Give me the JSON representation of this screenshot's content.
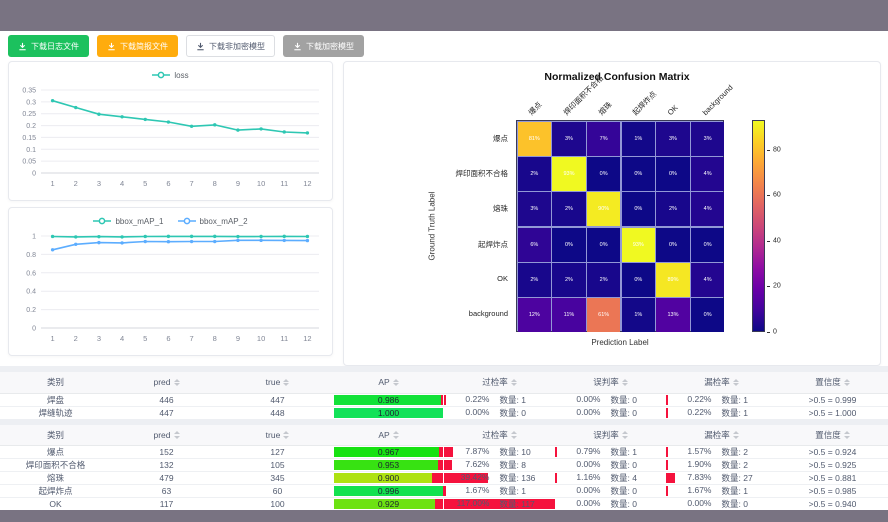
{
  "colors": {
    "chrome_bar": "#797382",
    "green_button": "#1cc15e",
    "orange_button": "#ffac0d",
    "gray_button": "#a2a2a2",
    "loss_line": "#2ec7b3",
    "map1_line": "#2ec7b3",
    "map2_line": "#5cadff",
    "bar_green_high": "#0ddf5b",
    "bar_green_low": "#b8df1c",
    "bar_red": "#f5123d",
    "table_header_bg": "#f8f8fa"
  },
  "toolbar": {
    "buttons": [
      {
        "label": "下载日志文件",
        "variant": "green"
      },
      {
        "label": "下载简报文件",
        "variant": "orange"
      },
      {
        "label": "下载非加密模型",
        "variant": "white"
      },
      {
        "label": "下载加密模型",
        "variant": "gray"
      }
    ]
  },
  "chart_data": [
    {
      "type": "line",
      "title": "loss",
      "legend": [
        "loss"
      ],
      "legend_position": "top",
      "grid": true,
      "x": [
        1,
        2,
        3,
        4,
        5,
        6,
        7,
        8,
        9,
        10,
        11,
        12
      ],
      "series": [
        {
          "name": "loss",
          "color": "#2ec7b3",
          "values": [
            0.305,
            0.276,
            0.248,
            0.237,
            0.226,
            0.215,
            0.197,
            0.203,
            0.181,
            0.186,
            0.173,
            0.169
          ]
        }
      ],
      "ylim": [
        0,
        0.35
      ],
      "yticks": [
        0,
        0.05,
        0.1,
        0.15,
        0.2,
        0.25,
        0.3,
        0.35
      ]
    },
    {
      "type": "line",
      "title": "bbox_mAP",
      "legend": [
        "bbox_mAP_1",
        "bbox_mAP_2"
      ],
      "legend_position": "top",
      "grid": true,
      "x": [
        1,
        2,
        3,
        4,
        5,
        6,
        7,
        8,
        9,
        10,
        11,
        12
      ],
      "series": [
        {
          "name": "bbox_mAP_1",
          "color": "#2ec7b3",
          "values": [
            0.995,
            0.99,
            0.993,
            0.99,
            0.995,
            0.996,
            0.996,
            0.996,
            0.994,
            0.995,
            0.996,
            0.995
          ]
        },
        {
          "name": "bbox_mAP_2",
          "color": "#5cadff",
          "values": [
            0.85,
            0.91,
            0.928,
            0.925,
            0.94,
            0.938,
            0.94,
            0.94,
            0.953,
            0.953,
            0.952,
            0.95
          ]
        }
      ],
      "ylim": [
        0,
        1
      ],
      "yticks": [
        0,
        0.2,
        0.4,
        0.6,
        0.8,
        1
      ]
    },
    {
      "type": "heatmap",
      "title": "Normalized Confusion Matrix",
      "xlabel": "Prediction Label",
      "ylabel": "Ground Truth Label",
      "colormap": "plasma",
      "vmax": 93,
      "colorbar_ticks": [
        0,
        20,
        40,
        60,
        80
      ],
      "labels": [
        "爆点",
        "焊印面积不合格",
        "熔珠",
        "起焊炸点",
        "OK",
        "background"
      ],
      "matrix_pct": [
        [
          81,
          3,
          7,
          1,
          3,
          3
        ],
        [
          2,
          93,
          0,
          0,
          0,
          4
        ],
        [
          3,
          2,
          90,
          0,
          2,
          4
        ],
        [
          6,
          0,
          0,
          93,
          0,
          0
        ],
        [
          2,
          2,
          2,
          0,
          89,
          4
        ],
        [
          12,
          11,
          61,
          1,
          13,
          0
        ]
      ]
    }
  ],
  "tables": [
    {
      "headers": [
        "类别",
        "pred",
        "true",
        "AP",
        "过检率",
        "误判率",
        "漏检率",
        "置信度"
      ],
      "rows": [
        {
          "category": "焊盘",
          "pred": "446",
          "true": "447",
          "ap": 0.986,
          "ap_text": "0.986",
          "over_pct": "0.22%",
          "over_count": "数量: 1",
          "over": 0.22,
          "mis_pct": "0.00%",
          "mis_count": "数量: 0",
          "mis": 0,
          "miss_pct": "0.22%",
          "miss_count": "数量: 1",
          "miss": 0.22,
          "conf": ">0.5 = 0.999"
        },
        {
          "category": "焊缝轨迹",
          "pred": "447",
          "true": "448",
          "ap": 1.0,
          "ap_text": "1.000",
          "over_pct": "0.00%",
          "over_count": "数量: 0",
          "over": 0,
          "mis_pct": "0.00%",
          "mis_count": "数量: 0",
          "mis": 0,
          "miss_pct": "0.22%",
          "miss_count": "数量: 1",
          "miss": 0.22,
          "conf": ">0.5 = 1.000"
        }
      ]
    },
    {
      "headers": [
        "类别",
        "pred",
        "true",
        "AP",
        "过检率",
        "误判率",
        "漏检率",
        "置信度"
      ],
      "rows": [
        {
          "category": "爆点",
          "pred": "152",
          "true": "127",
          "ap": 0.967,
          "ap_text": "0.967",
          "over_pct": "7.87%",
          "over_count": "数量: 10",
          "over": 7.87,
          "mis_pct": "0.79%",
          "mis_count": "数量: 1",
          "mis": 0.79,
          "miss_pct": "1.57%",
          "miss_count": "数量: 2",
          "miss": 1.57,
          "conf": ">0.5 = 0.924"
        },
        {
          "category": "焊印面积不合格",
          "pred": "132",
          "true": "105",
          "ap": 0.953,
          "ap_text": "0.953",
          "over_pct": "7.62%",
          "over_count": "数量: 8",
          "over": 7.62,
          "mis_pct": "0.00%",
          "mis_count": "数量: 0",
          "mis": 0,
          "miss_pct": "1.90%",
          "miss_count": "数量: 2",
          "miss": 1.9,
          "conf": ">0.5 = 0.925"
        },
        {
          "category": "熔珠",
          "pred": "479",
          "true": "345",
          "ap": 0.9,
          "ap_text": "0.900",
          "over_pct": "39.42%",
          "over_count": "数量: 136",
          "over": 39.42,
          "mis_pct": "1.16%",
          "mis_count": "数量: 4",
          "mis": 1.16,
          "miss_pct": "7.83%",
          "miss_count": "数量: 27",
          "miss": 7.83,
          "conf": ">0.5 = 0.881"
        },
        {
          "category": "起焊炸点",
          "pred": "63",
          "true": "60",
          "ap": 0.996,
          "ap_text": "0.996",
          "over_pct": "1.67%",
          "over_count": "数量: 1",
          "over": 1.67,
          "mis_pct": "0.00%",
          "mis_count": "数量: 0",
          "mis": 0,
          "miss_pct": "1.67%",
          "miss_count": "数量: 1",
          "miss": 1.67,
          "conf": ">0.5 = 0.985"
        },
        {
          "category": "OK",
          "pred": "117",
          "true": "100",
          "ap": 0.929,
          "ap_text": "0.929",
          "over_pct": "117.00%",
          "over_count": "数量: 117",
          "over": 117,
          "mis_pct": "0.00%",
          "mis_count": "数量: 0",
          "mis": 0,
          "miss_pct": "0.00%",
          "miss_count": "数量: 0",
          "miss": 0,
          "conf": ">0.5 = 0.940"
        }
      ]
    }
  ]
}
